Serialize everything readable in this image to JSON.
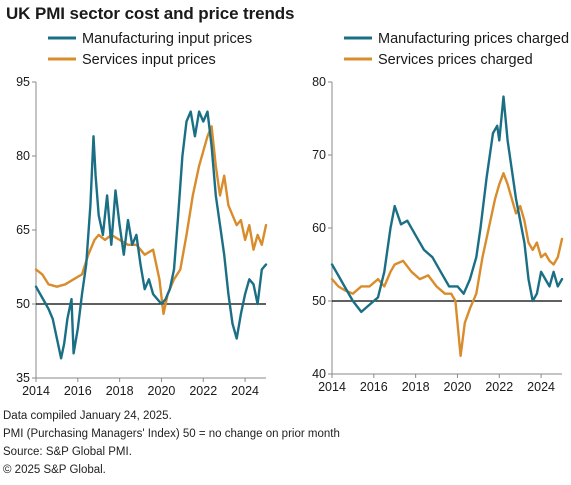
{
  "title": "UK PMI sector cost and price trends",
  "footnotes": [
    "Data compiled January 24, 2025.",
    "PMI (Purchasing Managers' Index) 50 = no change on prior month",
    "Source: S&P Global PMI.",
    "© 2025 S&P Global."
  ],
  "colors": {
    "manufacturing": "#1b6f85",
    "services": "#d98c2b",
    "baseline": "#000000"
  },
  "chart_data": [
    {
      "type": "line",
      "ylim": [
        35,
        95
      ],
      "yticks": [
        "35",
        "50",
        "65",
        "80",
        "95"
      ],
      "xlim": [
        2014,
        2025
      ],
      "xticks": [
        "2014",
        "2016",
        "2018",
        "2020",
        "2022",
        "2024"
      ],
      "baseline": 50,
      "legend_position": "top",
      "series": [
        {
          "name": "Manufacturing input prices",
          "color_key": "manufacturing",
          "points": [
            [
              2014.0,
              53.5
            ],
            [
              2014.2,
              52
            ],
            [
              2014.4,
              50.5
            ],
            [
              2014.6,
              49
            ],
            [
              2014.8,
              47
            ],
            [
              2015.0,
              43
            ],
            [
              2015.2,
              39
            ],
            [
              2015.35,
              42
            ],
            [
              2015.5,
              47
            ],
            [
              2015.7,
              51
            ],
            [
              2015.8,
              40
            ],
            [
              2016.0,
              45
            ],
            [
              2016.2,
              52
            ],
            [
              2016.4,
              58
            ],
            [
              2016.6,
              70
            ],
            [
              2016.75,
              84
            ],
            [
              2016.85,
              76
            ],
            [
              2017.0,
              68
            ],
            [
              2017.2,
              64
            ],
            [
              2017.4,
              72
            ],
            [
              2017.6,
              62
            ],
            [
              2017.8,
              73
            ],
            [
              2018.0,
              66
            ],
            [
              2018.2,
              60
            ],
            [
              2018.4,
              67
            ],
            [
              2018.6,
              62
            ],
            [
              2018.8,
              64
            ],
            [
              2019.0,
              58
            ],
            [
              2019.2,
              53
            ],
            [
              2019.4,
              55
            ],
            [
              2019.6,
              52
            ],
            [
              2019.8,
              51
            ],
            [
              2020.0,
              50
            ],
            [
              2020.2,
              51
            ],
            [
              2020.4,
              53
            ],
            [
              2020.6,
              57
            ],
            [
              2020.8,
              68
            ],
            [
              2021.0,
              80
            ],
            [
              2021.2,
              87
            ],
            [
              2021.4,
              89
            ],
            [
              2021.6,
              84
            ],
            [
              2021.8,
              89
            ],
            [
              2022.0,
              87
            ],
            [
              2022.2,
              89
            ],
            [
              2022.4,
              82
            ],
            [
              2022.6,
              72
            ],
            [
              2022.8,
              66
            ],
            [
              2023.0,
              60
            ],
            [
              2023.2,
              52
            ],
            [
              2023.4,
              46
            ],
            [
              2023.6,
              43
            ],
            [
              2023.8,
              48
            ],
            [
              2024.0,
              52
            ],
            [
              2024.2,
              55
            ],
            [
              2024.4,
              54
            ],
            [
              2024.6,
              50
            ],
            [
              2024.8,
              57
            ],
            [
              2025.0,
              58
            ]
          ]
        },
        {
          "name": "Services input prices",
          "color_key": "services",
          "points": [
            [
              2014.0,
              57
            ],
            [
              2014.3,
              56
            ],
            [
              2014.6,
              54
            ],
            [
              2015.0,
              53.5
            ],
            [
              2015.4,
              54
            ],
            [
              2015.8,
              55
            ],
            [
              2016.2,
              56
            ],
            [
              2016.5,
              60
            ],
            [
              2016.8,
              63
            ],
            [
              2017.0,
              64
            ],
            [
              2017.3,
              63
            ],
            [
              2017.6,
              64
            ],
            [
              2018.0,
              63
            ],
            [
              2018.4,
              62
            ],
            [
              2018.8,
              62
            ],
            [
              2019.2,
              60
            ],
            [
              2019.6,
              61
            ],
            [
              2019.9,
              55
            ],
            [
              2020.1,
              48
            ],
            [
              2020.3,
              52
            ],
            [
              2020.6,
              55
            ],
            [
              2020.9,
              57
            ],
            [
              2021.2,
              64
            ],
            [
              2021.5,
              72
            ],
            [
              2021.8,
              78
            ],
            [
              2022.0,
              81
            ],
            [
              2022.2,
              84
            ],
            [
              2022.4,
              86
            ],
            [
              2022.6,
              78
            ],
            [
              2022.8,
              72
            ],
            [
              2023.0,
              76
            ],
            [
              2023.2,
              70
            ],
            [
              2023.4,
              68
            ],
            [
              2023.6,
              66
            ],
            [
              2023.8,
              67
            ],
            [
              2024.0,
              63
            ],
            [
              2024.2,
              66
            ],
            [
              2024.4,
              61
            ],
            [
              2024.6,
              64
            ],
            [
              2024.8,
              62
            ],
            [
              2025.0,
              66
            ]
          ]
        }
      ]
    },
    {
      "type": "line",
      "ylim": [
        40,
        80
      ],
      "yticks": [
        "40",
        "50",
        "60",
        "70",
        "80"
      ],
      "xlim": [
        2014,
        2025
      ],
      "xticks": [
        "2014",
        "2016",
        "2018",
        "2020",
        "2022",
        "2024"
      ],
      "baseline": 50,
      "legend_position": "top",
      "series": [
        {
          "name": "Manufacturing prices charged",
          "color_key": "manufacturing",
          "points": [
            [
              2014.0,
              55
            ],
            [
              2014.3,
              53.5
            ],
            [
              2014.6,
              52
            ],
            [
              2015.0,
              50
            ],
            [
              2015.4,
              48.5
            ],
            [
              2015.8,
              49.5
            ],
            [
              2016.2,
              50.5
            ],
            [
              2016.5,
              54
            ],
            [
              2016.8,
              60
            ],
            [
              2017.0,
              63
            ],
            [
              2017.3,
              60.5
            ],
            [
              2017.6,
              61
            ],
            [
              2018.0,
              59
            ],
            [
              2018.4,
              57
            ],
            [
              2018.8,
              56
            ],
            [
              2019.2,
              54
            ],
            [
              2019.6,
              52
            ],
            [
              2020.0,
              52
            ],
            [
              2020.3,
              51
            ],
            [
              2020.6,
              53
            ],
            [
              2020.9,
              56
            ],
            [
              2021.1,
              60
            ],
            [
              2021.4,
              67
            ],
            [
              2021.7,
              73
            ],
            [
              2021.9,
              74
            ],
            [
              2022.0,
              72
            ],
            [
              2022.2,
              78
            ],
            [
              2022.4,
              72
            ],
            [
              2022.6,
              68
            ],
            [
              2022.8,
              64
            ],
            [
              2023.0,
              61
            ],
            [
              2023.2,
              58
            ],
            [
              2023.4,
              53
            ],
            [
              2023.6,
              50
            ],
            [
              2023.8,
              51
            ],
            [
              2024.0,
              54
            ],
            [
              2024.2,
              53
            ],
            [
              2024.4,
              52
            ],
            [
              2024.6,
              54
            ],
            [
              2024.8,
              52
            ],
            [
              2025.0,
              53
            ]
          ]
        },
        {
          "name": "Services prices charged",
          "color_key": "services",
          "points": [
            [
              2014.0,
              53
            ],
            [
              2014.3,
              52
            ],
            [
              2014.6,
              51.5
            ],
            [
              2015.0,
              51
            ],
            [
              2015.4,
              52
            ],
            [
              2015.8,
              52
            ],
            [
              2016.2,
              53
            ],
            [
              2016.5,
              52
            ],
            [
              2016.8,
              54
            ],
            [
              2017.0,
              55
            ],
            [
              2017.4,
              55.5
            ],
            [
              2017.8,
              54
            ],
            [
              2018.2,
              53
            ],
            [
              2018.6,
              53.5
            ],
            [
              2019.0,
              52
            ],
            [
              2019.4,
              51
            ],
            [
              2019.7,
              51
            ],
            [
              2019.9,
              50
            ],
            [
              2020.15,
              42.5
            ],
            [
              2020.35,
              47
            ],
            [
              2020.6,
              49
            ],
            [
              2020.9,
              51
            ],
            [
              2021.2,
              56
            ],
            [
              2021.5,
              60
            ],
            [
              2021.8,
              64
            ],
            [
              2022.0,
              66
            ],
            [
              2022.2,
              67.5
            ],
            [
              2022.4,
              66
            ],
            [
              2022.6,
              64
            ],
            [
              2022.8,
              62
            ],
            [
              2023.0,
              63
            ],
            [
              2023.2,
              61
            ],
            [
              2023.4,
              58
            ],
            [
              2023.6,
              57
            ],
            [
              2023.8,
              58
            ],
            [
              2024.0,
              56
            ],
            [
              2024.2,
              56.5
            ],
            [
              2024.4,
              55.5
            ],
            [
              2024.6,
              55
            ],
            [
              2024.8,
              56
            ],
            [
              2025.0,
              58.5
            ]
          ]
        }
      ]
    }
  ]
}
